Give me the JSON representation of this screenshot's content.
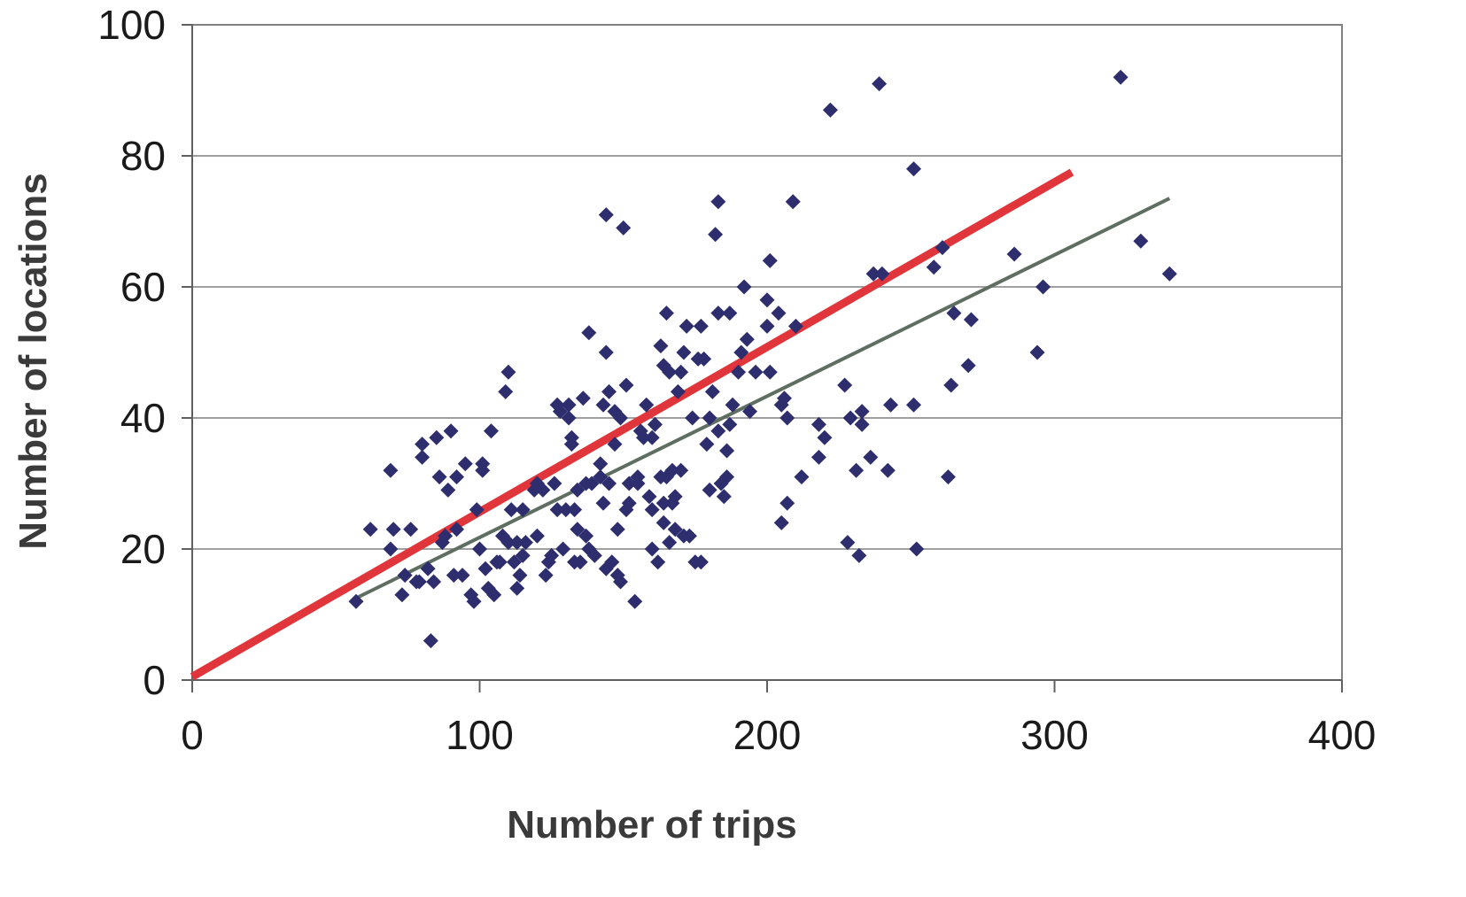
{
  "chart_data": {
    "type": "scatter",
    "title": "",
    "xlabel": "Number of trips",
    "ylabel": "Number of locations",
    "xlim": [
      0,
      400
    ],
    "ylim": [
      0,
      100
    ],
    "x_ticks": [
      0,
      100,
      200,
      300,
      400
    ],
    "y_ticks": [
      0,
      20,
      40,
      60,
      80,
      100
    ],
    "x_tick_labels": [
      "0",
      "100",
      "200",
      "300",
      "400"
    ],
    "y_tick_labels": [
      "0",
      "20",
      "40",
      "60",
      "80",
      "100"
    ],
    "grid": "horizontal",
    "legend": "none",
    "colors": {
      "points": "#2e2e6e",
      "line_red": "#e0353a",
      "line_gray": "#5e6e60",
      "grid": "#808080",
      "frame": "#808080"
    },
    "points": [
      [
        57,
        12
      ],
      [
        62,
        23
      ],
      [
        69,
        20
      ],
      [
        69,
        32
      ],
      [
        70,
        23
      ],
      [
        73,
        13
      ],
      [
        74,
        16
      ],
      [
        76,
        23
      ],
      [
        78,
        15
      ],
      [
        79,
        15
      ],
      [
        80,
        34
      ],
      [
        80,
        36
      ],
      [
        82,
        17
      ],
      [
        83,
        6
      ],
      [
        84,
        15
      ],
      [
        85,
        37
      ],
      [
        86,
        31
      ],
      [
        87,
        21
      ],
      [
        88,
        22
      ],
      [
        89,
        29
      ],
      [
        90,
        38
      ],
      [
        91,
        16
      ],
      [
        92,
        23
      ],
      [
        92,
        31
      ],
      [
        94,
        16
      ],
      [
        95,
        33
      ],
      [
        97,
        13
      ],
      [
        98,
        12
      ],
      [
        99,
        26
      ],
      [
        100,
        20
      ],
      [
        101,
        33
      ],
      [
        101,
        32
      ],
      [
        102,
        17
      ],
      [
        103,
        14
      ],
      [
        104,
        38
      ],
      [
        105,
        13
      ],
      [
        106,
        18
      ],
      [
        107,
        18
      ],
      [
        108,
        22
      ],
      [
        109,
        44
      ],
      [
        110,
        47
      ],
      [
        110,
        21
      ],
      [
        111,
        26
      ],
      [
        112,
        18
      ],
      [
        113,
        14
      ],
      [
        113,
        21
      ],
      [
        114,
        16
      ],
      [
        115,
        19
      ],
      [
        115,
        26
      ],
      [
        116,
        21
      ],
      [
        119,
        29
      ],
      [
        120,
        30
      ],
      [
        120,
        22
      ],
      [
        122,
        29
      ],
      [
        123,
        16
      ],
      [
        124,
        18
      ],
      [
        125,
        19
      ],
      [
        126,
        30
      ],
      [
        127,
        42
      ],
      [
        127,
        26
      ],
      [
        128,
        41
      ],
      [
        129,
        20
      ],
      [
        130,
        26
      ],
      [
        131,
        40
      ],
      [
        131,
        42
      ],
      [
        132,
        37
      ],
      [
        132,
        36
      ],
      [
        133,
        18
      ],
      [
        133,
        26
      ],
      [
        134,
        23
      ],
      [
        134,
        29
      ],
      [
        135,
        18
      ],
      [
        136,
        43
      ],
      [
        137,
        22
      ],
      [
        137,
        30
      ],
      [
        138,
        20
      ],
      [
        138,
        53
      ],
      [
        139,
        30
      ],
      [
        140,
        19
      ],
      [
        142,
        33
      ],
      [
        142,
        31
      ],
      [
        143,
        42
      ],
      [
        143,
        27
      ],
      [
        144,
        71
      ],
      [
        144,
        50
      ],
      [
        144,
        17
      ],
      [
        145,
        44
      ],
      [
        145,
        30
      ],
      [
        146,
        18
      ],
      [
        147,
        41
      ],
      [
        147,
        36
      ],
      [
        148,
        16
      ],
      [
        148,
        23
      ],
      [
        149,
        15
      ],
      [
        149,
        40
      ],
      [
        150,
        69
      ],
      [
        151,
        45
      ],
      [
        151,
        26
      ],
      [
        152,
        27
      ],
      [
        152,
        30
      ],
      [
        154,
        12
      ],
      [
        155,
        31
      ],
      [
        155,
        30
      ],
      [
        156,
        38
      ],
      [
        157,
        37
      ],
      [
        158,
        42
      ],
      [
        159,
        28
      ],
      [
        160,
        20
      ],
      [
        160,
        26
      ],
      [
        160,
        37
      ],
      [
        161,
        39
      ],
      [
        162,
        18
      ],
      [
        163,
        51
      ],
      [
        163,
        31
      ],
      [
        164,
        27
      ],
      [
        164,
        24
      ],
      [
        164,
        48
      ],
      [
        165,
        56
      ],
      [
        165,
        31
      ],
      [
        166,
        21
      ],
      [
        166,
        47
      ],
      [
        167,
        32
      ],
      [
        167,
        27
      ],
      [
        168,
        28
      ],
      [
        168,
        23
      ],
      [
        169,
        44
      ],
      [
        170,
        47
      ],
      [
        170,
        32
      ],
      [
        171,
        50
      ],
      [
        171,
        22
      ],
      [
        172,
        54
      ],
      [
        173,
        22
      ],
      [
        174,
        40
      ],
      [
        175,
        18
      ],
      [
        176,
        49
      ],
      [
        177,
        18
      ],
      [
        177,
        54
      ],
      [
        178,
        49
      ],
      [
        179,
        36
      ],
      [
        180,
        29
      ],
      [
        180,
        40
      ],
      [
        181,
        44
      ],
      [
        182,
        68
      ],
      [
        183,
        38
      ],
      [
        183,
        73
      ],
      [
        183,
        56
      ],
      [
        184,
        30
      ],
      [
        185,
        28
      ],
      [
        186,
        31
      ],
      [
        186,
        35
      ],
      [
        187,
        56
      ],
      [
        187,
        39
      ],
      [
        188,
        42
      ],
      [
        190,
        47
      ],
      [
        191,
        50
      ],
      [
        192,
        60
      ],
      [
        193,
        52
      ],
      [
        194,
        41
      ],
      [
        196,
        47
      ],
      [
        200,
        58
      ],
      [
        200,
        54
      ],
      [
        201,
        64
      ],
      [
        201,
        47
      ],
      [
        204,
        56
      ],
      [
        205,
        24
      ],
      [
        205,
        42
      ],
      [
        206,
        43
      ],
      [
        207,
        27
      ],
      [
        207,
        40
      ],
      [
        209,
        73
      ],
      [
        210,
        54
      ],
      [
        212,
        31
      ],
      [
        218,
        34
      ],
      [
        218,
        39
      ],
      [
        220,
        37
      ],
      [
        222,
        87
      ],
      [
        227,
        45
      ],
      [
        228,
        21
      ],
      [
        229,
        40
      ],
      [
        231,
        32
      ],
      [
        232,
        19
      ],
      [
        233,
        39
      ],
      [
        233,
        41
      ],
      [
        236,
        34
      ],
      [
        237,
        62
      ],
      [
        239,
        91
      ],
      [
        240,
        62
      ],
      [
        242,
        32
      ],
      [
        243,
        42
      ],
      [
        251,
        42
      ],
      [
        251,
        78
      ],
      [
        252,
        20
      ],
      [
        258,
        63
      ],
      [
        261,
        66
      ],
      [
        263,
        31
      ],
      [
        264,
        45
      ],
      [
        265,
        56
      ],
      [
        270,
        48
      ],
      [
        271,
        55
      ],
      [
        286,
        65
      ],
      [
        294,
        50
      ],
      [
        296,
        60
      ],
      [
        323,
        92
      ],
      [
        330,
        67
      ],
      [
        340,
        62
      ]
    ],
    "fit_lines": [
      {
        "color": "red",
        "x": [
          0,
          306
        ],
        "y": [
          0.5,
          77.5
        ]
      },
      {
        "color": "gray",
        "x": [
          57,
          340
        ],
        "y": [
          12.5,
          73.5
        ]
      }
    ]
  }
}
